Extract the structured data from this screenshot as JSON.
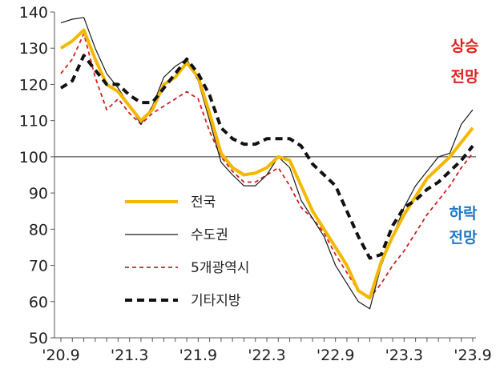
{
  "chart_data": {
    "type": "line",
    "x": [
      "'20.9",
      "'20.10",
      "'20.11",
      "'20.12",
      "'21.1",
      "'21.2",
      "'21.3",
      "'21.4",
      "'21.5",
      "'21.6",
      "'21.7",
      "'21.8",
      "'21.9",
      "'21.10",
      "'21.11",
      "'21.12",
      "'22.1",
      "'22.2",
      "'22.3",
      "'22.4",
      "'22.5",
      "'22.6",
      "'22.7",
      "'22.8",
      "'22.9",
      "'22.10",
      "'22.11",
      "'22.12",
      "'23.1",
      "'23.2",
      "'23.3",
      "'23.4",
      "'23.5",
      "'23.6",
      "'23.7",
      "'23.8",
      "'23.9"
    ],
    "x_tick_labels": [
      "'20.9",
      "'21.3",
      "'21.9",
      "'22.3",
      "'22.9",
      "'23.3",
      "'23.9"
    ],
    "y_ticks": [
      50,
      60,
      70,
      80,
      90,
      100,
      110,
      120,
      130,
      140
    ],
    "ylim": [
      50,
      140
    ],
    "reference_line": 100,
    "series": [
      {
        "name": "전국",
        "color": "#f5b800",
        "style": "solid-thick",
        "values": [
          130,
          132,
          135,
          127,
          120,
          118,
          114,
          110,
          113,
          120,
          122,
          126,
          122,
          112,
          101,
          97,
          95,
          95.5,
          97,
          100,
          99,
          92,
          85,
          80,
          75,
          70,
          63,
          61,
          71,
          78,
          84,
          89,
          94,
          97,
          100,
          104,
          108
        ]
      },
      {
        "name": "수도권",
        "color": "#1a1a1a",
        "style": "solid-thin",
        "values": [
          137,
          138,
          138.5,
          130,
          123,
          119,
          114,
          109,
          114,
          122,
          125,
          127,
          121,
          110,
          98.5,
          95,
          92,
          92,
          95,
          100,
          97,
          88,
          83,
          78,
          70,
          65,
          60,
          58,
          70,
          78,
          86,
          92,
          96,
          100,
          101,
          109,
          113
        ]
      },
      {
        "name": "5개광역시",
        "color": "#d22020",
        "style": "dashed-thin",
        "values": [
          123,
          127,
          134,
          122,
          113,
          116,
          112,
          109,
          112,
          114,
          116,
          118,
          116,
          107,
          100,
          96,
          93,
          93,
          95,
          97,
          92,
          86,
          83,
          79,
          73,
          68,
          63,
          61,
          65,
          70,
          74,
          79,
          84,
          88,
          92,
          97,
          101
        ]
      },
      {
        "name": "기타지방",
        "color": "#111111",
        "style": "dashed-thick",
        "values": [
          119,
          121,
          128,
          124,
          120,
          120,
          117,
          115,
          115,
          119,
          123,
          127,
          123,
          117,
          108,
          105,
          103.5,
          103.5,
          105,
          105,
          105,
          103,
          98,
          95,
          92,
          85,
          78,
          72,
          73,
          81,
          86,
          88,
          91,
          93,
          96,
          99,
          103
        ]
      }
    ],
    "legend_position": "center-left",
    "annotations": [
      {
        "text": "상승",
        "color": "#e02020"
      },
      {
        "text": "전망",
        "color": "#e02020"
      },
      {
        "text": "하락",
        "color": "#1f78c8"
      },
      {
        "text": "전망",
        "color": "#1f78c8"
      }
    ]
  }
}
